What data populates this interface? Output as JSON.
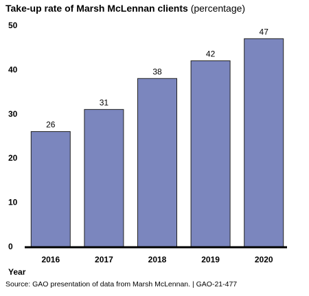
{
  "chart_data": {
    "type": "bar",
    "title": "Take-up rate of Marsh McLennan clients",
    "subtitle": "(percentage)",
    "xlabel": "Year",
    "ylabel": "",
    "categories": [
      "2016",
      "2017",
      "2018",
      "2019",
      "2020"
    ],
    "values": [
      26,
      31,
      38,
      42,
      47
    ],
    "ylim": [
      0,
      50
    ],
    "yticks": [
      0,
      10,
      20,
      30,
      40,
      50
    ],
    "grid": false,
    "bar_color": "#7b86be",
    "bar_edge_color": "#222222"
  },
  "source": "Source: GAO presentation of data from Marsh McLennan.  |  GAO-21-477"
}
